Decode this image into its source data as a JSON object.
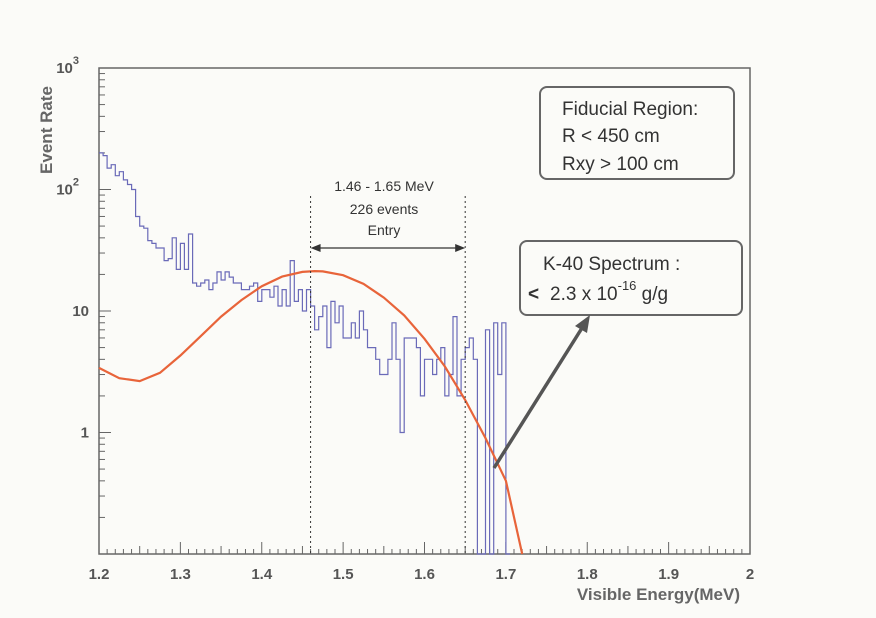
{
  "colors": {
    "histogram": "#6a6ab8",
    "fit": "#e8643a",
    "frame": "#666666",
    "arrow": "#555555"
  },
  "chart_data": {
    "type": "line",
    "xlabel": "Visible Energy(MeV)",
    "ylabel": "Event Rate",
    "xlim": [
      1.2,
      2.0
    ],
    "ylim": [
      0.1,
      1000
    ],
    "y_scale": "log",
    "grid": false,
    "x_ticks": [
      "1.2",
      "1.3",
      "1.4",
      "1.5",
      "1.6",
      "1.7",
      "1.8",
      "1.9",
      "2"
    ],
    "y_ticks": [
      {
        "value": 1,
        "label": "1",
        "exp": ""
      },
      {
        "value": 10,
        "label": "10",
        "exp": ""
      },
      {
        "value": 100,
        "label": "10",
        "exp": "2"
      },
      {
        "value": 1000,
        "label": "10",
        "exp": "3"
      }
    ],
    "series": [
      {
        "kind": "histogram",
        "bin_edges_start": 1.2,
        "bin_width": 0.005,
        "values": [
          200,
          190,
          150,
          160,
          130,
          140,
          120,
          110,
          100,
          60,
          50,
          48,
          38,
          36,
          33,
          33,
          26,
          27,
          40,
          22,
          36,
          22,
          43,
          17,
          16,
          17,
          18,
          15,
          17,
          21,
          18,
          21,
          19,
          17,
          17,
          15,
          15,
          16,
          17,
          12,
          15,
          15,
          13,
          16,
          11,
          15,
          11,
          26,
          12,
          15,
          10,
          15,
          11,
          7,
          9,
          11,
          5,
          12,
          8,
          11,
          6,
          6,
          8,
          6,
          10,
          7,
          5,
          5,
          4,
          3,
          3,
          4,
          8,
          4,
          1,
          6,
          6,
          6,
          5,
          2,
          4,
          4,
          3,
          4,
          5,
          2,
          3,
          9,
          2,
          4,
          5,
          6,
          4,
          0.1,
          0.1,
          7,
          0.1,
          8,
          3,
          8,
          0.1
        ]
      },
      {
        "kind": "curve",
        "x": [
          1.2,
          1.225,
          1.25,
          1.275,
          1.3,
          1.325,
          1.35,
          1.375,
          1.4,
          1.425,
          1.45,
          1.465,
          1.475,
          1.5,
          1.525,
          1.55,
          1.575,
          1.6,
          1.625,
          1.65,
          1.675,
          1.7,
          1.72
        ],
        "y": [
          3.4,
          2.8,
          2.65,
          3.1,
          4.3,
          6.2,
          9.0,
          12.3,
          16.0,
          19.2,
          21.0,
          21.3,
          21.2,
          19.7,
          16.7,
          12.9,
          9.2,
          5.9,
          3.5,
          1.85,
          0.9,
          0.4,
          0.1
        ]
      }
    ],
    "annotations": {
      "window": {
        "x1": 1.46,
        "x2": 1.65,
        "line1": "1.46 - 1.65 MeV",
        "line2": "226 events",
        "line3": "Entry"
      },
      "fiducial": {
        "line1": "Fiducial Region:",
        "line2": "R < 450 cm",
        "line3": "Rxy > 100 cm"
      },
      "k40": {
        "line1": "K-40 Spectrum :",
        "line2_prefix": "2.3 x 10",
        "line2_exp": "-16",
        "line2_suffix": " g/g",
        "bullet": "<"
      }
    }
  }
}
